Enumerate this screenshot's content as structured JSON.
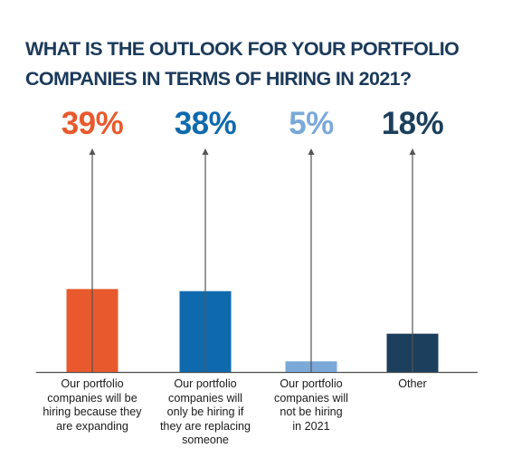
{
  "title_lines": [
    "WHAT IS THE OUTLOOK FOR YOUR PORTFOLIO",
    "COMPANIES IN TERMS OF HIRING IN 2021?"
  ],
  "chart_data": {
    "type": "bar",
    "title": "WHAT IS THE OUTLOOK FOR YOUR PORTFOLIO COMPANIES IN TERMS OF HIRING IN 2021?",
    "categories": [
      "Our portfolio companies will be hiring because they are expanding",
      "Our portfolio companies will only be hiring if they are replacing someone",
      "Our portfolio companies will not be hiring in 2021",
      "Other"
    ],
    "category_label_lines": [
      [
        "Our portfolio",
        "companies will be",
        "hiring because they",
        "are expanding"
      ],
      [
        "Our portfolio",
        "companies will",
        "only be hiring if",
        "they are replacing",
        "someone"
      ],
      [
        "Our portfolio",
        "companies will",
        "not be hiring",
        "in 2021"
      ],
      [
        "Other"
      ]
    ],
    "values": [
      39,
      38,
      5,
      18
    ],
    "value_labels": [
      "39%",
      "38%",
      "5%",
      "18%"
    ],
    "colors": [
      "#e85a2e",
      "#0f6aad",
      "#7aa9d8",
      "#1b3f5c"
    ],
    "ylim": [
      0,
      100
    ],
    "xlabel": "",
    "ylabel": "",
    "grid": false,
    "legend": "none"
  }
}
